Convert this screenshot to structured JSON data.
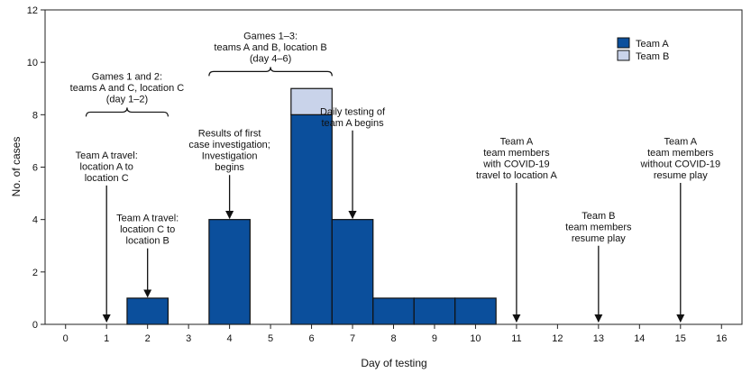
{
  "chart_data": {
    "type": "bar",
    "xlabel": "Day of testing",
    "ylabel": "No. of cases",
    "xlim": [
      -0.5,
      16.5
    ],
    "ylim": [
      0,
      12
    ],
    "x_ticks": [
      0,
      1,
      2,
      3,
      4,
      5,
      6,
      7,
      8,
      9,
      10,
      11,
      12,
      13,
      14,
      15,
      16
    ],
    "y_ticks": [
      0,
      2,
      4,
      6,
      8,
      10,
      12
    ],
    "grid": false,
    "legend_position": "top-right",
    "stacked": true,
    "x": [
      2,
      4,
      6,
      7,
      8,
      9,
      10
    ],
    "series": [
      {
        "name": "Team A",
        "color": "#0b4f9c",
        "values": [
          1,
          4,
          8,
          4,
          1,
          1,
          1
        ]
      },
      {
        "name": "Team B",
        "color": "#c9d3ea",
        "values": [
          0,
          0,
          1,
          0,
          0,
          0,
          0
        ]
      }
    ],
    "brackets": [
      {
        "from": 0.5,
        "to": 2.5,
        "y": 8.1,
        "lines": [
          "Games 1 and 2:",
          "teams A and C, location C",
          "(day 1–2)"
        ]
      },
      {
        "from": 3.5,
        "to": 6.5,
        "y": 9.65,
        "lines": [
          "Games 1–3:",
          "teams A and B, location B",
          "(day 4–6)"
        ]
      }
    ],
    "annotations": [
      {
        "x": 1,
        "y_from": 5.3,
        "y_to": 0.1,
        "lines": [
          "Team A travel:",
          "location A to",
          "location C"
        ]
      },
      {
        "x": 2,
        "y_from": 2.9,
        "y_to": 1.05,
        "lines": [
          "Team A travel:",
          "location C to",
          "location B"
        ]
      },
      {
        "x": 4,
        "y_from": 5.7,
        "y_to": 4.05,
        "lines": [
          "Results of first",
          "case investigation;",
          "Investigation",
          "begins"
        ]
      },
      {
        "x": 7,
        "y_from": 7.4,
        "y_to": 4.05,
        "lines": [
          "Daily testing of",
          "team A begins"
        ]
      },
      {
        "x": 11,
        "y_from": 5.4,
        "y_to": 0.1,
        "lines": [
          "Team A",
          "team members",
          "with COVID-19",
          "travel to location A"
        ]
      },
      {
        "x": 13,
        "y_from": 3.0,
        "y_to": 0.1,
        "lines": [
          "Team B",
          "team members",
          "resume play"
        ]
      },
      {
        "x": 15,
        "y_from": 5.4,
        "y_to": 0.1,
        "lines": [
          "Team A",
          "team members",
          "without COVID-19",
          "resume play"
        ]
      }
    ]
  }
}
